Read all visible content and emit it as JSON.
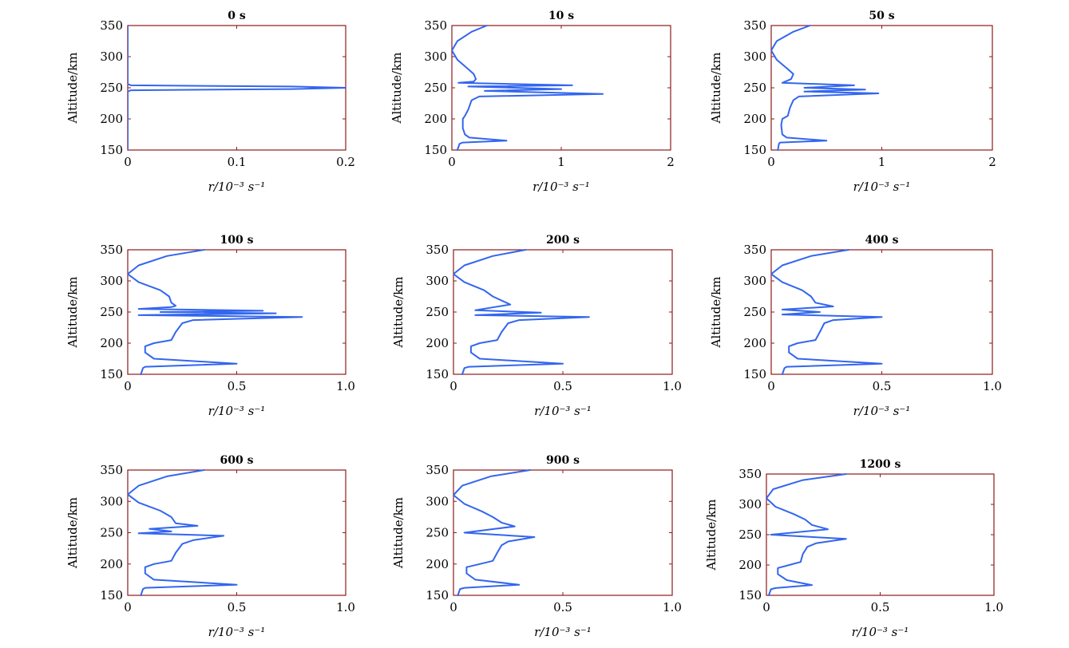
{
  "figure": {
    "line_color": "#3366ee",
    "frame_color": "#8b1a1a"
  },
  "chart_data": [
    {
      "type": "line",
      "title": "0 s",
      "xlabel": "r/10⁻³ s⁻¹",
      "ylabel": "Altitude/km",
      "xlim": [
        0,
        0.2
      ],
      "ylim": [
        150,
        350
      ],
      "xticks": [
        "0",
        "0.1",
        "0.2"
      ],
      "yticks": [
        "150",
        "200",
        "250",
        "300",
        "350"
      ],
      "series": [
        {
          "x": [
            0,
            0,
            0,
            0.003,
            0.15,
            0.2,
            0.15,
            0.003,
            0,
            0,
            0
          ],
          "y": [
            350,
            300,
            256,
            254,
            252,
            250,
            248,
            246,
            244,
            200,
            150
          ]
        }
      ]
    },
    {
      "type": "line",
      "title": "10 s",
      "xlabel": "r/10⁻³ s⁻¹",
      "ylabel": "Altitude/km",
      "xlim": [
        0,
        2
      ],
      "ylim": [
        150,
        350
      ],
      "xticks": [
        "0",
        "1",
        "2"
      ],
      "yticks": [
        "150",
        "200",
        "250",
        "300",
        "350"
      ],
      "series": [
        {
          "x": [
            0.32,
            0.18,
            0.05,
            0,
            0.05,
            0.15,
            0.2,
            0.22,
            0.2,
            0.06,
            1.1,
            0.15,
            1.0,
            0.3,
            1.38,
            0.25,
            0.18,
            0.15,
            0.12,
            0.1,
            0.1,
            0.12,
            0.16,
            0.5,
            0.1,
            0.07,
            0.05
          ],
          "y": [
            350,
            340,
            325,
            310,
            295,
            280,
            272,
            264,
            260,
            258,
            254,
            252,
            248,
            245,
            240,
            236,
            230,
            215,
            205,
            200,
            185,
            175,
            170,
            165,
            162,
            160,
            150
          ]
        }
      ]
    },
    {
      "type": "line",
      "title": "50 s",
      "xlabel": "r/10⁻³ s⁻¹",
      "ylabel": "Altitude/km",
      "xlim": [
        0,
        2
      ],
      "ylim": [
        150,
        350
      ],
      "xticks": [
        "0",
        "1",
        "2"
      ],
      "yticks": [
        "150",
        "200",
        "250",
        "300",
        "350"
      ],
      "series": [
        {
          "x": [
            0.35,
            0.2,
            0.05,
            0,
            0.05,
            0.15,
            0.2,
            0.18,
            0.1,
            0.75,
            0.3,
            0.85,
            0.3,
            0.97,
            0.25,
            0.2,
            0.17,
            0.15,
            0.1,
            0.09,
            0.1,
            0.14,
            0.5,
            0.08,
            0.07,
            0.06
          ],
          "y": [
            350,
            340,
            325,
            310,
            295,
            280,
            272,
            264,
            258,
            254,
            250,
            247,
            244,
            241,
            236,
            230,
            218,
            205,
            200,
            190,
            175,
            170,
            165,
            162,
            160,
            150
          ]
        }
      ]
    },
    {
      "type": "line",
      "title": "100 s",
      "xlabel": "r/10⁻³ s⁻¹",
      "ylabel": "Altitude/km",
      "xlim": [
        0,
        1
      ],
      "ylim": [
        150,
        350
      ],
      "xticks": [
        "0",
        "0.5",
        "1.0"
      ],
      "yticks": [
        "150",
        "200",
        "250",
        "300",
        "350"
      ],
      "series": [
        {
          "x": [
            0.35,
            0.18,
            0.05,
            0,
            0.05,
            0.15,
            0.19,
            0.2,
            0.22,
            0.2,
            0.05,
            0.62,
            0.15,
            0.68,
            0.05,
            0.8,
            0.3,
            0.25,
            0.22,
            0.2,
            0.12,
            0.08,
            0.08,
            0.12,
            0.5,
            0.08,
            0.07,
            0.06
          ],
          "y": [
            350,
            340,
            325,
            311,
            298,
            285,
            275,
            265,
            260,
            258,
            255,
            252,
            250,
            248,
            245,
            242,
            237,
            232,
            218,
            205,
            200,
            195,
            185,
            175,
            167,
            162,
            160,
            150
          ]
        }
      ]
    },
    {
      "type": "line",
      "title": "200 s",
      "xlabel": "r/10⁻³ s⁻¹",
      "ylabel": "Altitude/km",
      "xlim": [
        0,
        1
      ],
      "ylim": [
        150,
        350
      ],
      "xticks": [
        "0",
        "0.5",
        "1.0"
      ],
      "yticks": [
        "150",
        "200",
        "250",
        "300",
        "350"
      ],
      "series": [
        {
          "x": [
            0.33,
            0.18,
            0.05,
            0,
            0.05,
            0.14,
            0.18,
            0.26,
            0.1,
            0.4,
            0.1,
            0.62,
            0.3,
            0.25,
            0.22,
            0.2,
            0.12,
            0.08,
            0.08,
            0.12,
            0.5,
            0.07,
            0.05,
            0.04
          ],
          "y": [
            350,
            340,
            325,
            311,
            298,
            285,
            275,
            262,
            253,
            249,
            245,
            242,
            237,
            232,
            218,
            205,
            200,
            195,
            185,
            175,
            167,
            162,
            160,
            150
          ]
        }
      ]
    },
    {
      "type": "line",
      "title": "400 s",
      "xlabel": "r/10⁻³ s⁻¹",
      "ylabel": "Altitude/km",
      "xlim": [
        0,
        1
      ],
      "ylim": [
        150,
        350
      ],
      "xticks": [
        "0",
        "0.5",
        "1.0"
      ],
      "yticks": [
        "150",
        "200",
        "250",
        "300",
        "350"
      ],
      "series": [
        {
          "x": [
            0.35,
            0.18,
            0.05,
            0,
            0.05,
            0.14,
            0.18,
            0.2,
            0.28,
            0.05,
            0.22,
            0.05,
            0.5,
            0.28,
            0.24,
            0.22,
            0.2,
            0.12,
            0.08,
            0.08,
            0.12,
            0.5,
            0.07,
            0.06,
            0.05
          ],
          "y": [
            350,
            340,
            325,
            311,
            298,
            285,
            275,
            265,
            259,
            254,
            250,
            246,
            242,
            237,
            232,
            218,
            205,
            200,
            195,
            185,
            175,
            167,
            162,
            160,
            150
          ]
        }
      ]
    },
    {
      "type": "line",
      "title": "600 s",
      "xlabel": "r/10⁻³ s⁻¹",
      "ylabel": "Altitude/km",
      "xlim": [
        0,
        1
      ],
      "ylim": [
        150,
        350
      ],
      "xticks": [
        "0",
        "0.5",
        "1.0"
      ],
      "yticks": [
        "150",
        "200",
        "250",
        "300",
        "350"
      ],
      "series": [
        {
          "x": [
            0.35,
            0.18,
            0.05,
            0,
            0.05,
            0.15,
            0.2,
            0.22,
            0.32,
            0.1,
            0.2,
            0.05,
            0.44,
            0.3,
            0.25,
            0.22,
            0.2,
            0.12,
            0.08,
            0.08,
            0.12,
            0.5,
            0.08,
            0.07,
            0.06
          ],
          "y": [
            350,
            340,
            325,
            311,
            298,
            285,
            275,
            265,
            261,
            256,
            252,
            249,
            245,
            238,
            232,
            218,
            205,
            200,
            195,
            185,
            175,
            167,
            162,
            160,
            150
          ]
        }
      ]
    },
    {
      "type": "line",
      "title": "900 s",
      "xlabel": "r/10⁻³ s⁻¹",
      "ylabel": "Altitude/km",
      "xlim": [
        0,
        1
      ],
      "ylim": [
        150,
        350
      ],
      "xticks": [
        "0",
        "0.5",
        "1.0"
      ],
      "yticks": [
        "150",
        "200",
        "250",
        "300",
        "350"
      ],
      "series": [
        {
          "x": [
            0.35,
            0.17,
            0.04,
            0,
            0.05,
            0.13,
            0.18,
            0.22,
            0.28,
            0.05,
            0.37,
            0.25,
            0.22,
            0.2,
            0.18,
            0.12,
            0.06,
            0.06,
            0.1,
            0.3,
            0.05,
            0.03,
            0.02
          ],
          "y": [
            350,
            340,
            325,
            310,
            296,
            284,
            275,
            266,
            260,
            250,
            243,
            236,
            230,
            218,
            205,
            200,
            195,
            185,
            175,
            167,
            162,
            160,
            150
          ]
        }
      ]
    },
    {
      "type": "line",
      "title": "1200 s",
      "xlabel": "r/10⁻³ s⁻¹",
      "ylabel": "Altitude/km",
      "xlim": [
        0,
        1
      ],
      "ylim": [
        150,
        350
      ],
      "xticks": [
        "0",
        "0.5",
        "1.0"
      ],
      "yticks": [
        "150",
        "200",
        "250",
        "300",
        "350"
      ],
      "series": [
        {
          "x": [
            0.35,
            0.16,
            0.03,
            0,
            0.04,
            0.12,
            0.17,
            0.2,
            0.27,
            0.02,
            0.35,
            0.22,
            0.18,
            0.16,
            0.15,
            0.1,
            0.05,
            0.05,
            0.09,
            0.2,
            0.04,
            0.02,
            0.01
          ],
          "y": [
            350,
            340,
            325,
            310,
            296,
            284,
            275,
            266,
            259,
            250,
            243,
            236,
            230,
            218,
            205,
            200,
            195,
            185,
            175,
            167,
            162,
            160,
            150
          ]
        }
      ]
    }
  ]
}
